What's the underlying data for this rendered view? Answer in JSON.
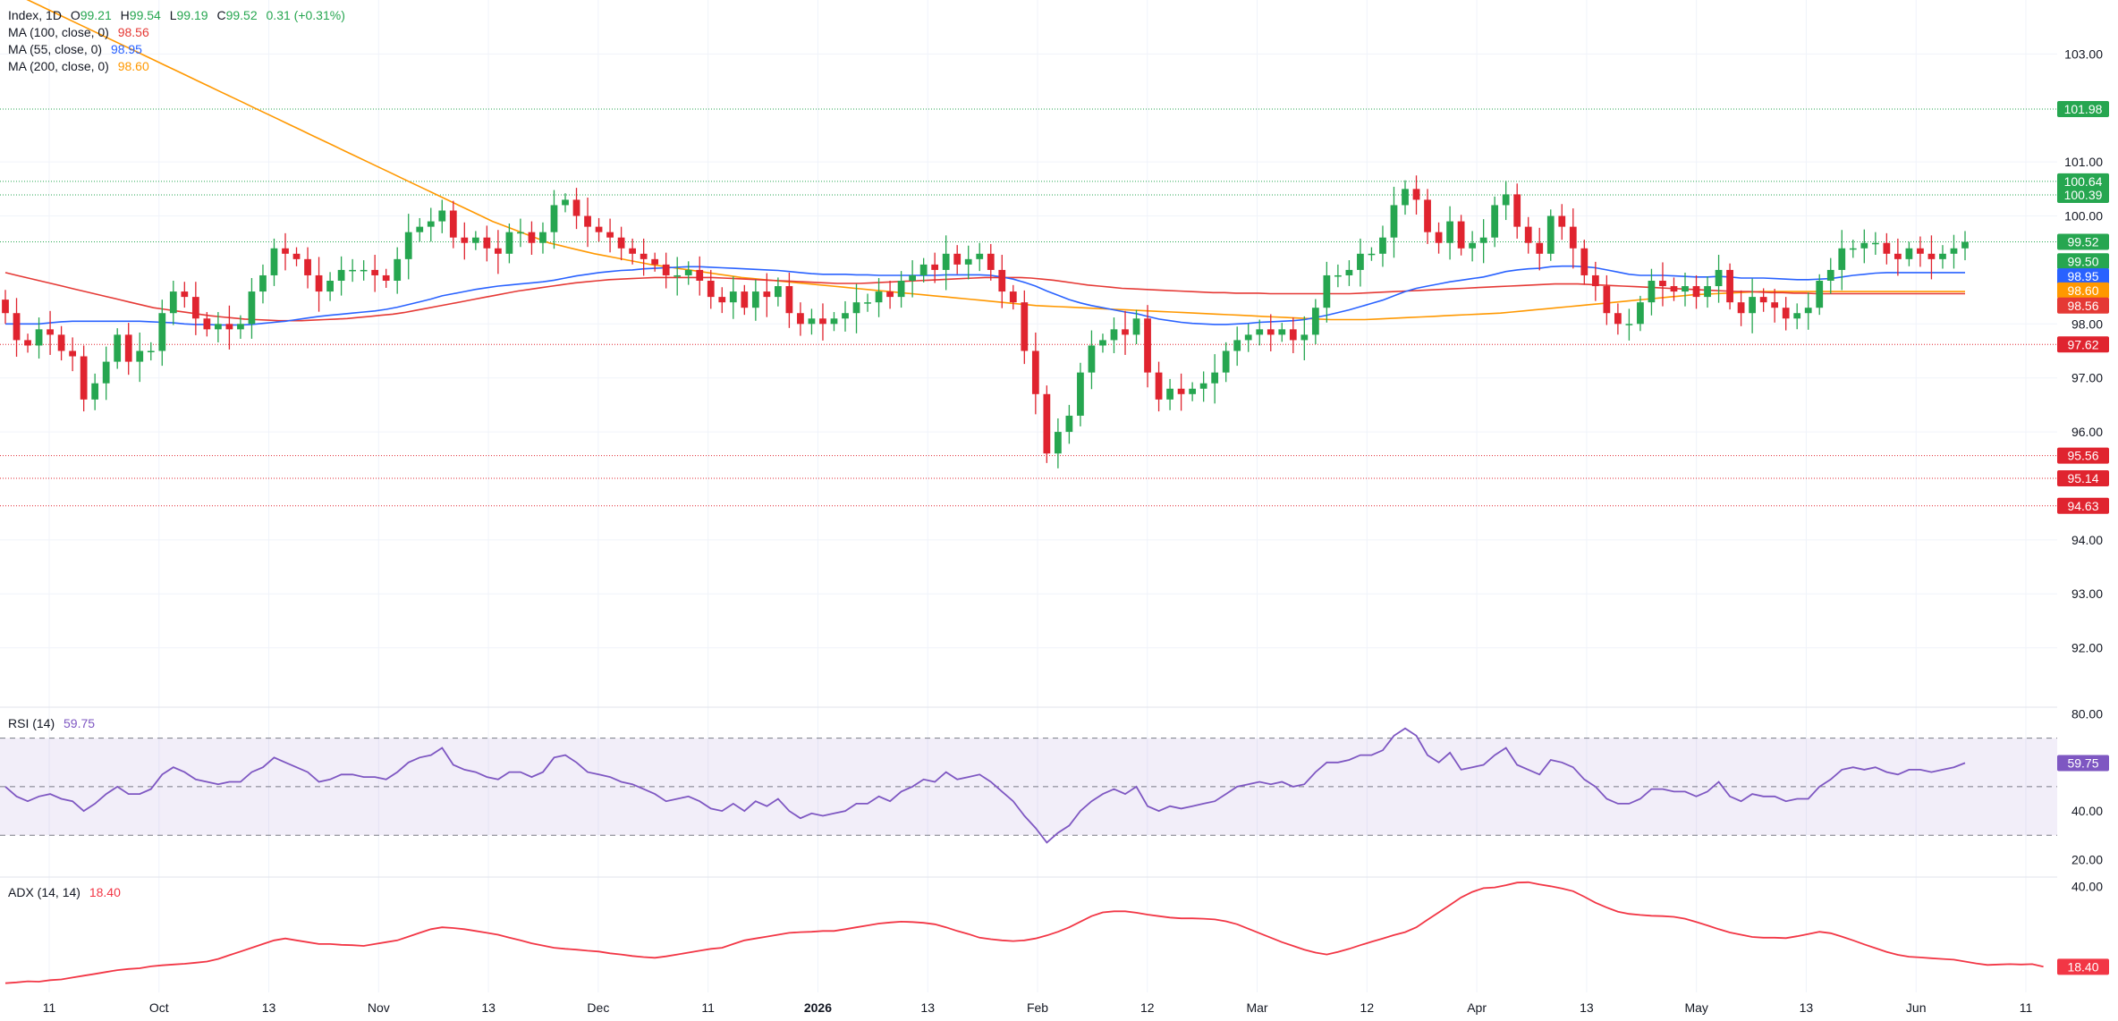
{
  "header": {
    "symbol": "Index, 1D",
    "open_label": "O",
    "open": "99.21",
    "high_label": "H",
    "high": "99.54",
    "low_label": "L",
    "low": "99.19",
    "close_label": "C",
    "close": "99.52",
    "change": "0.31 (+0.31%)"
  },
  "indicators": {
    "ma100": {
      "label": "MA (100, close, 0)",
      "value": "98.56",
      "color": "#e53935"
    },
    "ma55": {
      "label": "MA (55, close, 0)",
      "value": "98.95",
      "color": "#2962ff"
    },
    "ma200": {
      "label": "MA (200, close, 0)",
      "value": "98.60",
      "color": "#ff9800"
    },
    "rsi": {
      "label": "RSI (14)",
      "value": "59.75",
      "color": "#7e57c2"
    },
    "adx": {
      "label": "ADX (14, 14)",
      "value": "18.40",
      "color": "#f23645"
    }
  },
  "colors": {
    "up": "#26a650",
    "down": "#e0242f",
    "grid": "#f0f3fa",
    "axis_text": "#131722"
  },
  "chart_data": [
    {
      "type": "candlestick",
      "name": "price",
      "ylim": [
        91.0,
        104.0
      ],
      "y_ticks": [
        "103.00",
        "101.00",
        "100.00",
        "98.00",
        "97.00",
        "96.00",
        "94.00",
        "93.00",
        "92.00"
      ],
      "x_ticks": [
        "11",
        "Oct",
        "13",
        "Nov",
        "13",
        "Dec",
        "11",
        "2026",
        "13",
        "Feb",
        "12",
        "Mar",
        "12",
        "Apr",
        "13",
        "May",
        "13",
        "Jun",
        "11"
      ],
      "levels": [
        {
          "value": 101.98,
          "color": "#26a650"
        },
        {
          "value": 100.64,
          "color": "#26a650"
        },
        {
          "value": 100.39,
          "color": "#26a650"
        },
        {
          "value": 99.52,
          "color": "#26a650"
        },
        {
          "value": 97.62,
          "color": "#e0242f"
        },
        {
          "value": 95.56,
          "color": "#e0242f"
        },
        {
          "value": 95.14,
          "color": "#e0242f"
        },
        {
          "value": 94.63,
          "color": "#e0242f"
        }
      ],
      "price_tags": [
        {
          "label": "101.98",
          "value": 101.98,
          "color": "#26a650"
        },
        {
          "label": "100.64",
          "value": 100.64,
          "color": "#26a650"
        },
        {
          "label": "100.39",
          "value": 100.39,
          "color": "#26a650"
        },
        {
          "label": "99.52",
          "value": 99.52,
          "color": "#26a650"
        },
        {
          "label": "99.50",
          "value": 99.16,
          "color": "#26a650"
        },
        {
          "label": "98.95",
          "value": 98.88,
          "color": "#2962ff"
        },
        {
          "label": "98.60",
          "value": 98.62,
          "color": "#ff9800"
        },
        {
          "label": "98.56",
          "value": 98.34,
          "color": "#e53935"
        },
        {
          "label": "97.62",
          "value": 97.62,
          "color": "#e0242f"
        },
        {
          "label": "95.56",
          "value": 95.56,
          "color": "#e0242f"
        },
        {
          "label": "95.14",
          "value": 95.14,
          "color": "#e0242f"
        },
        {
          "label": "94.63",
          "value": 94.63,
          "color": "#e0242f"
        }
      ],
      "closes": [
        98.2,
        97.7,
        97.6,
        97.9,
        97.8,
        97.5,
        97.4,
        96.6,
        96.9,
        97.3,
        97.8,
        97.3,
        97.5,
        97.5,
        98.2,
        98.6,
        98.5,
        98.1,
        97.9,
        98.0,
        97.9,
        98.0,
        98.6,
        98.9,
        99.4,
        99.3,
        99.2,
        98.9,
        98.6,
        98.8,
        99.0,
        99.0,
        99.0,
        98.9,
        98.8,
        99.2,
        99.7,
        99.8,
        99.9,
        100.1,
        99.6,
        99.5,
        99.6,
        99.4,
        99.3,
        99.7,
        99.7,
        99.5,
        99.7,
        100.2,
        100.3,
        100.0,
        99.8,
        99.7,
        99.6,
        99.4,
        99.3,
        99.2,
        99.1,
        98.9,
        98.9,
        99.0,
        98.8,
        98.5,
        98.4,
        98.6,
        98.3,
        98.6,
        98.5,
        98.7,
        98.2,
        98.0,
        98.1,
        98.0,
        98.1,
        98.2,
        98.4,
        98.4,
        98.6,
        98.5,
        98.8,
        98.9,
        99.1,
        99.0,
        99.3,
        99.1,
        99.2,
        99.3,
        99.0,
        98.6,
        98.4,
        97.5,
        96.7,
        95.6,
        96.0,
        96.3,
        97.1,
        97.6,
        97.7,
        97.9,
        97.8,
        98.1,
        97.1,
        96.6,
        96.8,
        96.7,
        96.8,
        96.9,
        97.1,
        97.5,
        97.7,
        97.8,
        97.9,
        97.8,
        97.9,
        97.7,
        97.8,
        98.3,
        98.9,
        98.9,
        99.0,
        99.3,
        99.3,
        99.6,
        100.2,
        100.5,
        100.3,
        99.7,
        99.5,
        99.9,
        99.4,
        99.5,
        99.6,
        100.2,
        100.4,
        99.8,
        99.5,
        99.3,
        100.0,
        99.8,
        99.4,
        98.9,
        98.7,
        98.2,
        98.0,
        98.0,
        98.4,
        98.8,
        98.7,
        98.6,
        98.7,
        98.5,
        98.7,
        99.0,
        98.4,
        98.2,
        98.5,
        98.4,
        98.3,
        98.1,
        98.2,
        98.3,
        98.8,
        99.0,
        99.4,
        99.4,
        99.5,
        99.5,
        99.3,
        99.2,
        99.4,
        99.3,
        99.2,
        99.3,
        99.4,
        99.52
      ]
    },
    {
      "type": "line",
      "name": "RSI (14)",
      "ylim": [
        15,
        82
      ],
      "y_ticks": [
        "80.00",
        "40.00",
        "20.00"
      ],
      "bands": [
        70,
        50,
        30
      ],
      "values": [
        50,
        46,
        44,
        46,
        47,
        45,
        44,
        40,
        43,
        47,
        50,
        47,
        47,
        49,
        55,
        58,
        56,
        53,
        52,
        51,
        52,
        52,
        56,
        58,
        62,
        60,
        58,
        56,
        52,
        53,
        55,
        55,
        54,
        54,
        53,
        56,
        60,
        62,
        63,
        66,
        59,
        57,
        56,
        54,
        53,
        56,
        56,
        54,
        56,
        62,
        63,
        60,
        56,
        55,
        54,
        52,
        51,
        49,
        47,
        44,
        45,
        46,
        44,
        41,
        40,
        43,
        40,
        44,
        42,
        45,
        40,
        37,
        39,
        38,
        39,
        40,
        43,
        43,
        46,
        44,
        48,
        50,
        53,
        52,
        56,
        53,
        54,
        55,
        52,
        48,
        44,
        38,
        33,
        27,
        31,
        34,
        40,
        44,
        47,
        49,
        47,
        50,
        42,
        40,
        42,
        41,
        42,
        43,
        44,
        47,
        50,
        51,
        52,
        51,
        52,
        50,
        51,
        56,
        60,
        60,
        61,
        63,
        63,
        65,
        71,
        74,
        71,
        63,
        60,
        64,
        57,
        58,
        59,
        63,
        66,
        59,
        57,
        55,
        61,
        60,
        58,
        53,
        50,
        45,
        43,
        43,
        45,
        49,
        49,
        48,
        48,
        46,
        48,
        52,
        46,
        44,
        47,
        46,
        46,
        44,
        45,
        45,
        50,
        53,
        57,
        58,
        57,
        58,
        56,
        55,
        57,
        57,
        56,
        57,
        58,
        59.75
      ]
    },
    {
      "type": "line",
      "name": "ADX (14, 14)",
      "ylim": [
        12,
        42
      ],
      "y_ticks": [
        "40.00"
      ],
      "values": [
        14,
        14.2,
        14.5,
        14.4,
        14.8,
        15.0,
        15.5,
        16,
        16.5,
        17,
        17.5,
        17.8,
        18,
        18.5,
        18.8,
        19,
        19.2,
        19.5,
        19.8,
        20.5,
        21.5,
        22.5,
        23.5,
        24.5,
        25.5,
        26,
        25.5,
        25,
        24.5,
        24.5,
        24.3,
        24.2,
        24,
        24.5,
        25,
        25.5,
        26.5,
        27.5,
        28.5,
        29,
        28.8,
        28.5,
        28,
        27.5,
        27,
        26.2,
        25.5,
        24.7,
        24.1,
        23.5,
        23.2,
        23,
        22.7,
        22.5,
        22,
        21.7,
        21.3,
        21,
        20.8,
        21.2,
        21.7,
        22.2,
        22.7,
        23.2,
        23.5,
        24.5,
        25.5,
        26,
        26.5,
        27,
        27.5,
        27.7,
        27.8,
        28,
        28,
        28.5,
        29,
        29.5,
        30,
        30.3,
        30.5,
        30.4,
        30.2,
        29.8,
        29,
        28,
        27.2,
        26.2,
        25.8,
        25.5,
        25.3,
        25.5,
        26,
        26.8,
        27.8,
        29,
        30.5,
        32,
        33,
        33.3,
        33.3,
        32.9,
        32.4,
        32,
        31.6,
        31.4,
        31.4,
        31.3,
        31.1,
        30.6,
        29.8,
        28.6,
        27.4,
        26.2,
        25,
        24,
        23,
        22.2,
        21.7,
        22.4,
        23.2,
        24.2,
        25.1,
        26,
        26.9,
        27.7,
        29,
        31,
        33,
        35,
        37,
        38.5,
        39.5,
        39.7,
        40.3,
        41,
        41.1,
        40.5,
        40,
        39.4,
        38.7,
        37.2,
        35.6,
        34.3,
        33.2,
        32.6,
        32.3,
        32.1,
        32,
        31.8,
        31.3,
        30.4,
        29.5,
        28.5,
        27.6,
        27,
        26.4,
        26.2,
        26.2,
        26.1,
        26.6,
        27.2,
        27.8,
        27.4,
        26.5,
        25.5,
        24.4,
        23.4,
        22.4,
        21.6,
        21.1,
        20.9,
        20.7,
        20.5,
        20.3,
        19.8,
        19.3,
        18.9,
        19.0,
        19.1,
        19.0,
        19.1,
        18.4
      ]
    }
  ],
  "moving_averages": {
    "ma200": [
      104.2,
      104.1,
      104.0,
      103.9,
      103.8,
      103.7,
      103.6,
      103.5,
      103.4,
      103.3,
      103.2,
      103.1,
      103.0,
      102.9,
      102.8,
      102.7,
      102.6,
      102.5,
      102.4,
      102.3,
      102.2,
      102.1,
      102.0,
      101.9,
      101.8,
      101.7,
      101.6,
      101.5,
      101.4,
      101.3,
      101.2,
      101.1,
      101.0,
      100.9,
      100.8,
      100.7,
      100.6,
      100.5,
      100.4,
      100.3,
      100.2,
      100.1,
      100.0,
      99.9,
      99.82,
      99.74,
      99.66,
      99.58,
      99.5,
      99.45,
      99.4,
      99.35,
      99.3,
      99.26,
      99.22,
      99.18,
      99.14,
      99.1,
      99.07,
      99.04,
      99.01,
      98.98,
      98.95,
      98.92,
      98.89,
      98.86,
      98.84,
      98.82,
      98.8,
      98.78,
      98.76,
      98.74,
      98.72,
      98.7,
      98.68,
      98.66,
      98.64,
      98.62,
      98.6,
      98.58,
      98.56,
      98.54,
      98.52,
      98.5,
      98.48,
      98.46,
      98.44,
      98.42,
      98.4,
      98.38,
      98.36,
      98.34,
      98.33,
      98.32,
      98.31,
      98.3,
      98.29,
      98.28,
      98.27,
      98.26,
      98.25,
      98.24,
      98.23,
      98.22,
      98.21,
      98.2,
      98.19,
      98.18,
      98.17,
      98.16,
      98.15,
      98.14,
      98.13,
      98.12,
      98.11,
      98.1,
      98.09,
      98.08,
      98.08,
      98.08,
      98.08,
      98.09,
      98.1,
      98.11,
      98.12,
      98.13,
      98.14,
      98.15,
      98.16,
      98.17,
      98.18,
      98.19,
      98.2,
      98.22,
      98.24,
      98.26,
      98.28,
      98.3,
      98.32,
      98.34,
      98.36,
      98.38,
      98.4,
      98.42,
      98.44,
      98.46,
      98.48,
      98.5,
      98.52,
      98.54,
      98.55,
      98.56,
      98.57,
      98.58,
      98.59,
      98.6,
      98.6,
      98.6,
      98.6,
      98.6,
      98.6,
      98.6,
      98.6,
      98.6,
      98.6,
      98.6,
      98.6,
      98.6,
      98.6,
      98.6,
      98.6,
      98.6,
      98.6,
      98.6
    ],
    "ma55": [
      98.0,
      98.0,
      98.0,
      98.0,
      98.02,
      98.04,
      98.05,
      98.05,
      98.05,
      98.05,
      98.05,
      98.05,
      98.05,
      98.04,
      98.03,
      98.02,
      98.0,
      97.99,
      97.99,
      97.98,
      97.98,
      97.98,
      97.99,
      98.01,
      98.03,
      98.05,
      98.08,
      98.11,
      98.14,
      98.16,
      98.18,
      98.2,
      98.22,
      98.24,
      98.27,
      98.31,
      98.36,
      98.41,
      98.46,
      98.52,
      98.56,
      98.6,
      98.64,
      98.67,
      98.7,
      98.72,
      98.74,
      98.76,
      98.78,
      98.81,
      98.85,
      98.89,
      98.92,
      98.95,
      98.97,
      98.99,
      99.0,
      99.02,
      99.03,
      99.04,
      99.05,
      99.06,
      99.06,
      99.05,
      99.04,
      99.03,
      99.02,
      99.01,
      99.0,
      98.99,
      98.97,
      98.95,
      98.93,
      98.92,
      98.92,
      98.92,
      98.91,
      98.91,
      98.9,
      98.9,
      98.9,
      98.9,
      98.9,
      98.9,
      98.91,
      98.91,
      98.91,
      98.91,
      98.9,
      98.87,
      98.83,
      98.77,
      98.7,
      98.61,
      98.53,
      98.45,
      98.39,
      98.34,
      98.3,
      98.26,
      98.22,
      98.19,
      98.14,
      98.09,
      98.06,
      98.03,
      98.01,
      98.0,
      97.99,
      97.99,
      98.0,
      98.01,
      98.03,
      98.04,
      98.05,
      98.06,
      98.08,
      98.12,
      98.16,
      98.21,
      98.26,
      98.32,
      98.38,
      98.44,
      98.52,
      98.6,
      98.66,
      98.7,
      98.74,
      98.78,
      98.81,
      98.84,
      98.87,
      98.92,
      98.97,
      99.0,
      99.02,
      99.03,
      99.06,
      99.07,
      99.07,
      99.06,
      99.04,
      99.0,
      98.96,
      98.92,
      98.9,
      98.9,
      98.9,
      98.89,
      98.88,
      98.87,
      98.87,
      98.88,
      98.87,
      98.85,
      98.85,
      98.85,
      98.84,
      98.83,
      98.82,
      98.82,
      98.83,
      98.84,
      98.87,
      98.9,
      98.92,
      98.94,
      98.95,
      98.95,
      98.95,
      98.95,
      98.95,
      98.95,
      98.95,
      98.95
    ],
    "ma100": [
      98.95,
      98.9,
      98.85,
      98.8,
      98.75,
      98.7,
      98.65,
      98.6,
      98.55,
      98.5,
      98.45,
      98.4,
      98.35,
      98.3,
      98.27,
      98.24,
      98.21,
      98.18,
      98.15,
      98.13,
      98.11,
      98.09,
      98.08,
      98.07,
      98.06,
      98.06,
      98.06,
      98.07,
      98.08,
      98.09,
      98.1,
      98.12,
      98.14,
      98.16,
      98.18,
      98.21,
      98.25,
      98.29,
      98.33,
      98.37,
      98.41,
      98.45,
      98.49,
      98.53,
      98.57,
      98.61,
      98.64,
      98.67,
      98.7,
      98.73,
      98.76,
      98.78,
      98.8,
      98.82,
      98.83,
      98.84,
      98.85,
      98.86,
      98.86,
      98.86,
      98.86,
      98.86,
      98.86,
      98.85,
      98.84,
      98.83,
      98.82,
      98.81,
      98.8,
      98.79,
      98.78,
      98.77,
      98.76,
      98.75,
      98.75,
      98.75,
      98.76,
      98.77,
      98.78,
      98.79,
      98.8,
      98.81,
      98.82,
      98.83,
      98.84,
      98.85,
      98.86,
      98.86,
      98.86,
      98.86,
      98.85,
      98.83,
      98.81,
      98.78,
      98.75,
      98.72,
      98.7,
      98.68,
      98.66,
      98.65,
      98.64,
      98.63,
      98.62,
      98.61,
      98.6,
      98.59,
      98.58,
      98.58,
      98.57,
      98.57,
      98.57,
      98.56,
      98.56,
      98.56,
      98.56,
      98.56,
      98.56,
      98.56,
      98.56,
      98.57,
      98.58,
      98.59,
      98.6,
      98.61,
      98.62,
      98.63,
      98.64,
      98.65,
      98.66,
      98.67,
      98.68,
      98.69,
      98.7,
      98.71,
      98.72,
      98.73,
      98.74,
      98.74,
      98.74,
      98.73,
      98.72,
      98.71,
      98.7,
      98.69,
      98.68,
      98.67,
      98.66,
      98.65,
      98.64,
      98.63,
      98.62,
      98.61,
      98.6,
      98.6,
      98.59,
      98.58,
      98.58,
      98.57,
      98.57,
      98.56,
      98.56,
      98.56,
      98.56,
      98.56,
      98.56,
      98.56,
      98.56,
      98.56,
      98.56,
      98.56,
      98.56,
      98.56,
      98.56
    ]
  }
}
